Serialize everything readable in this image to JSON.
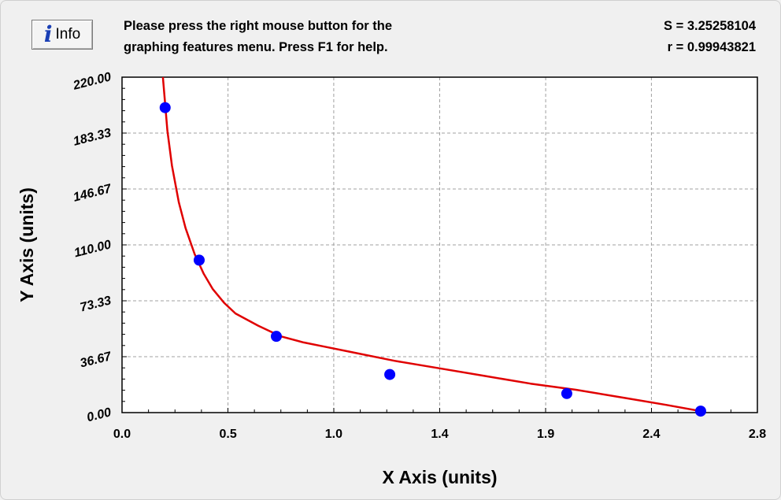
{
  "info_button": {
    "label": "Info",
    "icon": "info-icon"
  },
  "help_text": {
    "line1": "Please press the right mouse button for the",
    "line2": "graphing features menu.  Press F1 for help."
  },
  "stats": {
    "s_text": "S = 3.25258104",
    "r_text": "r = 0.99943821"
  },
  "colors": {
    "curve": "#e00000",
    "points": "#0000ff",
    "grid": "#a0a0a0",
    "background": "#f0f0f0",
    "plot_background": "#ffffff"
  },
  "chart_data": {
    "type": "scatter",
    "title": "",
    "xlabel": "X Axis (units)",
    "ylabel": "Y Axis (units)",
    "xlim": [
      0.0,
      2.8
    ],
    "ylim": [
      0.0,
      220.0
    ],
    "x_ticks": [
      "0.0",
      "0.5",
      "1.0",
      "1.4",
      "1.9",
      "2.4",
      "2.8"
    ],
    "x_tick_values": [
      0.0,
      0.467,
      0.933,
      1.4,
      1.867,
      2.333,
      2.8
    ],
    "y_ticks": [
      "0.00",
      "36.67",
      "73.33",
      "110.00",
      "146.67",
      "183.33",
      "220.00"
    ],
    "y_tick_values": [
      0.0,
      36.67,
      73.33,
      110.0,
      146.67,
      183.33,
      220.0
    ],
    "grid": true,
    "legend": "none",
    "series": [
      {
        "kind": "points",
        "x": [
          0.19,
          0.34,
          0.68,
          1.18,
          1.96,
          2.55
        ],
        "y": [
          200,
          100,
          50,
          25,
          12.5,
          1
        ]
      },
      {
        "kind": "fit-curve",
        "x": [
          0.18,
          0.2,
          0.22,
          0.25,
          0.28,
          0.32,
          0.36,
          0.4,
          0.45,
          0.5,
          0.6,
          0.7,
          0.8,
          0.9,
          1.0,
          1.2,
          1.4,
          1.6,
          1.8,
          2.0,
          2.2,
          2.4,
          2.55
        ],
        "y": [
          220,
          185,
          162,
          138,
          121,
          104,
          91,
          81,
          72,
          65,
          57,
          50,
          46,
          43,
          40,
          34,
          29,
          24,
          19,
          15,
          10,
          5,
          1
        ]
      }
    ]
  }
}
